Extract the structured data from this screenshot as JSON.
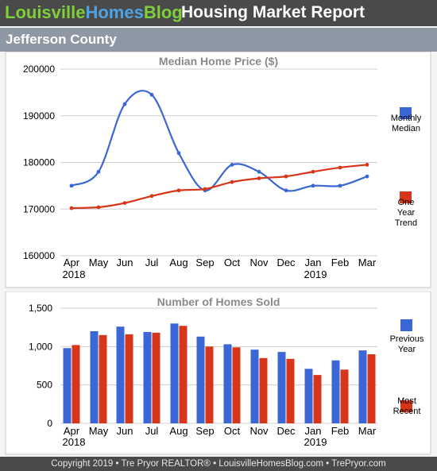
{
  "header": {
    "brand_part1": "Louisville",
    "brand_part2": "Homes",
    "brand_part3": "Blog",
    "report_title": "Housing Market Report",
    "region": "Jefferson County"
  },
  "colors": {
    "monthly": "#3a66d6",
    "trend": "#d7361b",
    "header_bg": "#4a4a4a",
    "region_bg": "#8e97a4"
  },
  "footer": {
    "text": "Copyright 2019 • Tre Pryor REALTOR® • LouisvilleHomesBlog.com • TrePryor.com"
  },
  "chart_data": [
    {
      "type": "line",
      "title": "Median Home Price ($)",
      "categories": [
        "Apr",
        "May",
        "Jun",
        "Jul",
        "Aug",
        "Sep",
        "Oct",
        "Nov",
        "Dec",
        "Jan",
        "Feb",
        "Mar"
      ],
      "year_labels": [
        "2018",
        "2019"
      ],
      "yticks": [
        "160000",
        "170000",
        "180000",
        "190000",
        "200000"
      ],
      "ylim": [
        160000,
        200000
      ],
      "grid": true,
      "legend_position": "right",
      "series": [
        {
          "name": "Monthly Median",
          "legend_lines": [
            "Monthly",
            "Median"
          ],
          "color": "#3a66d6",
          "values": [
            175000,
            178000,
            192500,
            194500,
            182000,
            174000,
            179500,
            178000,
            174000,
            175000,
            175000,
            177000
          ]
        },
        {
          "name": "One Year Trend",
          "legend_lines": [
            "One",
            "Year",
            "Trend"
          ],
          "color": "#d7361b",
          "values": [
            170200,
            170400,
            171300,
            172800,
            174000,
            174300,
            175800,
            176600,
            177000,
            178000,
            178900,
            179500
          ]
        }
      ]
    },
    {
      "type": "bar",
      "title": "Number of Homes Sold",
      "categories": [
        "Apr",
        "May",
        "Jun",
        "Jul",
        "Aug",
        "Sep",
        "Oct",
        "Nov",
        "Dec",
        "Jan",
        "Feb",
        "Mar"
      ],
      "year_labels": [
        "2018",
        "2019"
      ],
      "yticks": [
        "0",
        "500",
        "1,000",
        "1,500"
      ],
      "ylim": [
        0,
        1500
      ],
      "grid": true,
      "legend_position": "right",
      "series": [
        {
          "name": "Previous Year",
          "legend_lines": [
            "Previous",
            "Year"
          ],
          "color": "#3a66d6",
          "values": [
            980,
            1200,
            1260,
            1190,
            1300,
            1130,
            1030,
            960,
            930,
            710,
            820,
            950
          ]
        },
        {
          "name": "Most Recent",
          "legend_lines": [
            "Most",
            "Recent"
          ],
          "color": "#d7361b",
          "values": [
            1020,
            1150,
            1160,
            1180,
            1270,
            1000,
            990,
            850,
            840,
            630,
            700,
            900
          ]
        }
      ]
    }
  ]
}
